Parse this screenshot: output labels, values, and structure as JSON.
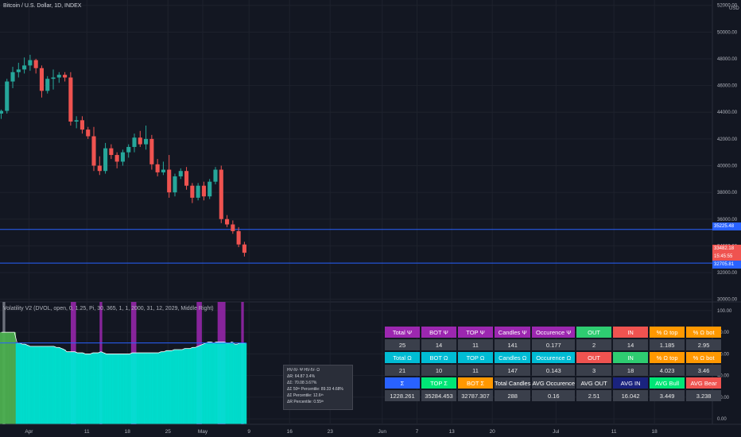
{
  "header": {
    "title": "Bitcoin / U.S. Dollar, 1D, INDEX",
    "unit": "USD",
    "indicator_title": "Volatility V2 (DVOL, open, 0, 1.25, Pi, 30, 365, 1, 1, 2000, 31, 12, 2029, Middle Right)"
  },
  "price_labels": {
    "upper": "35225.48",
    "last_price": "33482.18",
    "countdown": "15:45:55",
    "lower": "32705.81"
  },
  "colors": {
    "background": "#131722",
    "up": "#26a69a",
    "down": "#ef5350",
    "level_line": "#2962ff",
    "volatility_fill": "#00e5d4",
    "volatility_band": "#9c27b0",
    "first_bar": "#4caf50",
    "gray_bar": "#787b86"
  },
  "stats_table": {
    "rows": [
      [
        {
          "t": "Total Ψ",
          "c": "#9c27b0"
        },
        {
          "t": "BOT Ψ",
          "c": "#9c27b0"
        },
        {
          "t": "TOP Ψ",
          "c": "#9c27b0"
        },
        {
          "t": "Candles Ψ",
          "c": "#9c27b0"
        },
        {
          "t": "Occurence Ψ",
          "c": "#9c27b0"
        },
        {
          "t": "OUT",
          "c": "#2ecc71"
        },
        {
          "t": "IN",
          "c": "#ef5350"
        },
        {
          "t": "% Ω top",
          "c": "#ff9800"
        },
        {
          "t": "% Ω bot",
          "c": "#ff9800"
        }
      ],
      [
        {
          "t": "25"
        },
        {
          "t": "14"
        },
        {
          "t": "11"
        },
        {
          "t": "141"
        },
        {
          "t": "0.177"
        },
        {
          "t": "2"
        },
        {
          "t": "14"
        },
        {
          "t": "1.185"
        },
        {
          "t": "2.95"
        }
      ],
      [
        {
          "t": "Total Ω",
          "c": "#00bcd4"
        },
        {
          "t": "BOT Ω",
          "c": "#00bcd4"
        },
        {
          "t": "TOP Ω",
          "c": "#00bcd4"
        },
        {
          "t": "Candles Ω",
          "c": "#00bcd4"
        },
        {
          "t": "Occurence Ω",
          "c": "#00bcd4"
        },
        {
          "t": "OUT",
          "c": "#ef5350"
        },
        {
          "t": "IN",
          "c": "#2ecc71"
        },
        {
          "t": "% Ω top",
          "c": "#ff9800"
        },
        {
          "t": "% Ω bot",
          "c": "#ff9800"
        }
      ],
      [
        {
          "t": "21"
        },
        {
          "t": "10"
        },
        {
          "t": "11"
        },
        {
          "t": "147"
        },
        {
          "t": "0.143"
        },
        {
          "t": "3"
        },
        {
          "t": "18"
        },
        {
          "t": "4.023"
        },
        {
          "t": "3.46"
        }
      ],
      [
        {
          "t": "Σ",
          "c": "#2962ff"
        },
        {
          "t": "TOP Σ",
          "c": "#00e676"
        },
        {
          "t": "BOT Σ",
          "c": "#ff9800"
        },
        {
          "t": "Total Candles",
          "c": "#3a3f4b"
        },
        {
          "t": "AVG Occurence",
          "c": "#3a3f4b"
        },
        {
          "t": "AVG OUT",
          "c": "#3a3f4b"
        },
        {
          "t": "AVG IN",
          "c": "#1a237e"
        },
        {
          "t": "AVG Bull",
          "c": "#00e676"
        },
        {
          "t": "AVG Bear",
          "c": "#ef5350"
        }
      ],
      [
        {
          "t": "1228.261"
        },
        {
          "t": "35284.453"
        },
        {
          "t": "32787.307"
        },
        {
          "t": "288"
        },
        {
          "t": "0.16"
        },
        {
          "t": "2.51"
        },
        {
          "t": "16.042"
        },
        {
          "t": "3.449"
        },
        {
          "t": "3.238"
        }
      ]
    ]
  },
  "tooltip": {
    "lines": [
      "HV-IV- Ψ  HV-IV- Ω",
      "ΔR: 64.87  3.4%",
      "ΔΣ: 70.08  3.67%",
      "ΔΣ 50ᵗʰ Percentile: 89.33  4.68%",
      "ΔΣ Percentile: 12.6ᵗʰ",
      "ΔR Percentile: 0.55ᵗʰ"
    ]
  },
  "chart_data": [
    {
      "type": "candlestick",
      "title": "Bitcoin / U.S. Dollar, 1D, INDEX",
      "ylim": [
        29800,
        52400
      ],
      "y_ticks": [
        30000,
        32000,
        34000,
        36000,
        38000,
        40000,
        42000,
        44000,
        46000,
        48000,
        50000,
        52000
      ],
      "x_tick_labels": [
        {
          "label": "Apr",
          "day": 0
        },
        {
          "label": "11",
          "day": 10
        },
        {
          "label": "18",
          "day": 17
        },
        {
          "label": "25",
          "day": 24
        },
        {
          "label": "May",
          "day": 30
        },
        {
          "label": "9",
          "day": 38
        },
        {
          "label": "16",
          "day": 45
        },
        {
          "label": "23",
          "day": 52
        },
        {
          "label": "Jun",
          "day": 61
        },
        {
          "label": "7",
          "day": 67
        },
        {
          "label": "13",
          "day": 73
        },
        {
          "label": "20",
          "day": 80
        },
        {
          "label": "Jul",
          "day": 91
        },
        {
          "label": "11",
          "day": 101
        },
        {
          "label": "18",
          "day": 108
        }
      ],
      "x_range_days": [
        -5,
        118
      ],
      "horizontal_levels": [
        35225.48,
        32705.81
      ],
      "candles": [
        {
          "o": 43900,
          "h": 44200,
          "l": 43500,
          "c": 44100
        },
        {
          "o": 44100,
          "h": 46500,
          "l": 43900,
          "c": 46300
        },
        {
          "o": 46300,
          "h": 47400,
          "l": 45800,
          "c": 47000
        },
        {
          "o": 47000,
          "h": 47700,
          "l": 46600,
          "c": 47200
        },
        {
          "o": 47200,
          "h": 48100,
          "l": 46900,
          "c": 47500
        },
        {
          "o": 47500,
          "h": 48300,
          "l": 47100,
          "c": 47900
        },
        {
          "o": 47900,
          "h": 48000,
          "l": 46900,
          "c": 47300
        },
        {
          "o": 47300,
          "h": 47500,
          "l": 45100,
          "c": 45600
        },
        {
          "o": 45600,
          "h": 46700,
          "l": 45400,
          "c": 46500
        },
        {
          "o": 46500,
          "h": 47200,
          "l": 45700,
          "c": 46600
        },
        {
          "o": 46600,
          "h": 47000,
          "l": 46200,
          "c": 46800
        },
        {
          "o": 46800,
          "h": 47000,
          "l": 46300,
          "c": 46600
        },
        {
          "o": 46600,
          "h": 47000,
          "l": 43000,
          "c": 43300
        },
        {
          "o": 43300,
          "h": 43700,
          "l": 42800,
          "c": 43400
        },
        {
          "o": 43400,
          "h": 43700,
          "l": 42400,
          "c": 42700
        },
        {
          "o": 42700,
          "h": 42900,
          "l": 42000,
          "c": 42200
        },
        {
          "o": 42200,
          "h": 42900,
          "l": 39600,
          "c": 40000
        },
        {
          "o": 40000,
          "h": 40700,
          "l": 39300,
          "c": 39600
        },
        {
          "o": 39600,
          "h": 41700,
          "l": 39400,
          "c": 41300
        },
        {
          "o": 41300,
          "h": 41600,
          "l": 40500,
          "c": 40800
        },
        {
          "o": 40800,
          "h": 41000,
          "l": 39800,
          "c": 40300
        },
        {
          "o": 40300,
          "h": 41200,
          "l": 40000,
          "c": 41000
        },
        {
          "o": 41000,
          "h": 41600,
          "l": 40600,
          "c": 41400
        },
        {
          "o": 41400,
          "h": 42400,
          "l": 41000,
          "c": 42100
        },
        {
          "o": 42100,
          "h": 42600,
          "l": 41400,
          "c": 41600
        },
        {
          "o": 41600,
          "h": 43000,
          "l": 41200,
          "c": 42000
        },
        {
          "o": 42000,
          "h": 42300,
          "l": 39700,
          "c": 40100
        },
        {
          "o": 40100,
          "h": 40500,
          "l": 39200,
          "c": 39500
        },
        {
          "o": 39500,
          "h": 40300,
          "l": 39300,
          "c": 39700
        },
        {
          "o": 39700,
          "h": 40800,
          "l": 37600,
          "c": 38000
        },
        {
          "o": 38000,
          "h": 39400,
          "l": 37700,
          "c": 39200
        },
        {
          "o": 39200,
          "h": 39800,
          "l": 39000,
          "c": 39600
        },
        {
          "o": 39600,
          "h": 39900,
          "l": 38200,
          "c": 38500
        },
        {
          "o": 38500,
          "h": 38700,
          "l": 37200,
          "c": 37600
        },
        {
          "o": 37600,
          "h": 38700,
          "l": 37400,
          "c": 38500
        },
        {
          "o": 38500,
          "h": 38800,
          "l": 37400,
          "c": 37700
        },
        {
          "o": 37700,
          "h": 39000,
          "l": 37500,
          "c": 38800
        },
        {
          "o": 38800,
          "h": 39900,
          "l": 38600,
          "c": 39700
        },
        {
          "o": 39700,
          "h": 40000,
          "l": 35700,
          "c": 36000
        },
        {
          "o": 36000,
          "h": 36300,
          "l": 35400,
          "c": 35600
        },
        {
          "o": 35600,
          "h": 35900,
          "l": 34900,
          "c": 35100
        },
        {
          "o": 35100,
          "h": 35400,
          "l": 33900,
          "c": 34100
        },
        {
          "o": 34100,
          "h": 34300,
          "l": 33200,
          "c": 33480
        }
      ]
    },
    {
      "type": "area",
      "title": "Volatility V2 (DVOL, open, 0, 1.25, Pi, 30, 365, 1, 1, 2000, 31, 12, 2029, Middle Right)",
      "ylim": [
        -5,
        108
      ],
      "y_ticks": [
        0,
        20,
        40,
        60,
        80,
        100
      ],
      "reference_line": 70.08,
      "values": [
        80,
        80,
        80,
        80,
        80,
        80,
        70,
        70,
        69,
        69,
        68,
        67,
        67,
        67,
        67,
        67,
        67,
        67,
        67,
        67,
        67,
        66,
        66,
        65,
        64,
        62,
        62,
        62,
        62,
        61,
        61,
        61,
        60,
        60,
        60,
        61,
        61,
        61,
        62,
        61,
        60,
        60,
        60,
        60,
        60,
        60,
        60,
        60,
        60,
        60,
        61,
        61,
        61,
        61,
        61,
        61,
        61,
        61,
        61,
        61,
        61,
        62,
        62,
        63,
        63,
        63,
        64,
        64,
        64,
        64,
        65,
        65,
        65,
        66,
        66,
        67,
        68,
        69,
        70,
        71,
        71,
        70,
        71,
        71,
        71,
        71,
        70,
        70,
        71,
        69,
        69,
        70,
        70,
        70
      ],
      "bands": [
        {
          "start": 1,
          "end": 2,
          "color": "#787b86"
        },
        {
          "start": 27,
          "end": 29,
          "color": "#9c27b0"
        },
        {
          "start": 38,
          "end": 39,
          "color": "#9c27b0"
        },
        {
          "start": 50,
          "end": 52,
          "color": "#9c27b0"
        },
        {
          "start": 75,
          "end": 77,
          "color": "#9c27b0"
        },
        {
          "start": 83,
          "end": 86,
          "color": "#9c27b0"
        },
        {
          "start": 92,
          "end": 93,
          "color": "#9c27b0"
        }
      ]
    }
  ]
}
